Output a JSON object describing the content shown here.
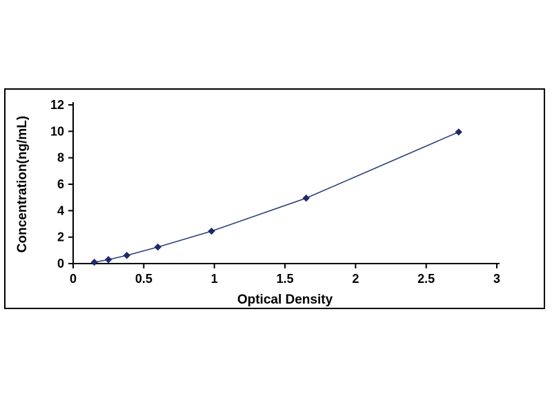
{
  "page": {
    "background_color": "#ffffff",
    "panel_border_color": "#000000"
  },
  "chart_data": {
    "type": "line",
    "title": "",
    "xlabel": "Optical Density",
    "ylabel": "Concentration(ng/mL)",
    "x": [
      0.15,
      0.25,
      0.38,
      0.6,
      0.98,
      1.65,
      2.73
    ],
    "y": [
      0.1,
      0.3,
      0.62,
      1.25,
      2.45,
      4.95,
      9.95
    ],
    "xlim": [
      0,
      3
    ],
    "ylim": [
      0,
      12
    ],
    "x_ticks": [
      0,
      0.5,
      1,
      1.5,
      2,
      2.5,
      3
    ],
    "x_tick_labels": [
      "0",
      "0.5",
      "1",
      "1.5",
      "2",
      "2.5",
      "3"
    ],
    "y_ticks": [
      0,
      2,
      4,
      6,
      8,
      10,
      12
    ],
    "y_tick_labels": [
      "0",
      "2",
      "4",
      "6",
      "8",
      "10",
      "12"
    ],
    "grid": false,
    "legend": null,
    "marker": "diamond",
    "line_color": "#2b3d7d",
    "marker_color": "#1f2a6b",
    "axis_color": "#000000",
    "tick_label_color": "#000000"
  }
}
